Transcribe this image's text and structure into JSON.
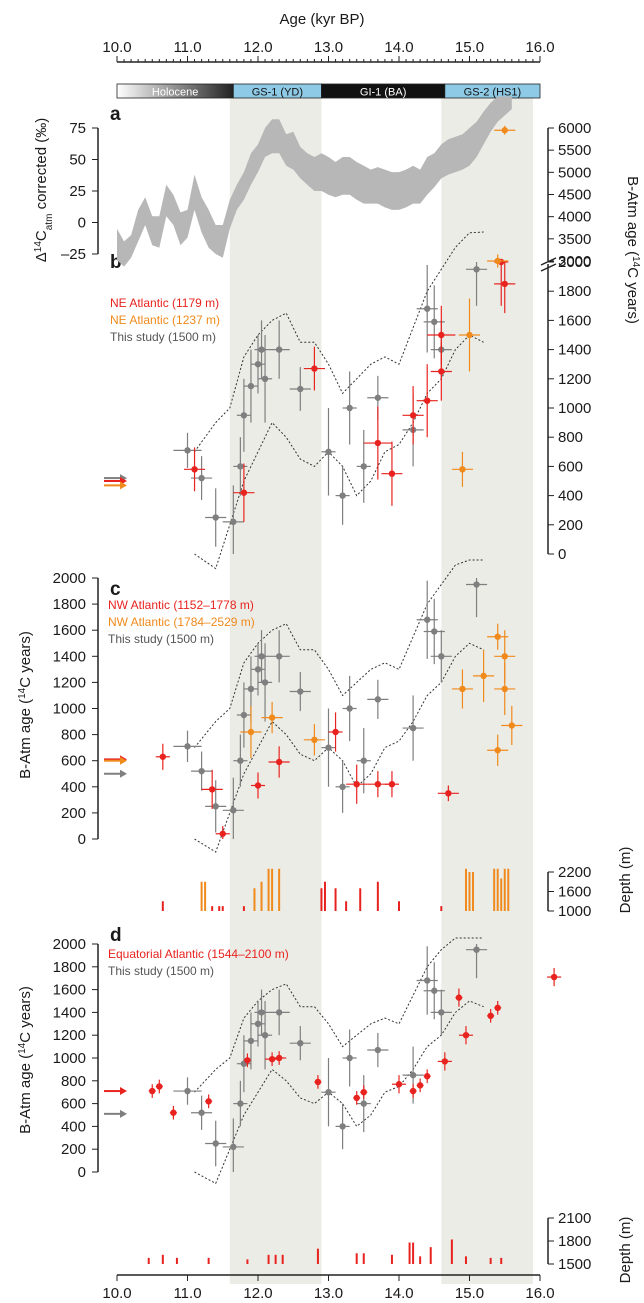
{
  "figure": {
    "top_axis_title": "Age (kyr BP)",
    "bottom_ticks": [
      "10.0",
      "11.0",
      "12.0",
      "13.0",
      "14.0",
      "15.0",
      "16.0"
    ],
    "top_ticks": [
      "10.0",
      "11.0",
      "12.0",
      "13.0",
      "14.0",
      "15.0",
      "16.0"
    ],
    "periods": [
      {
        "label": "Holocene",
        "start": 10.0,
        "end": 11.65,
        "color": "gradient"
      },
      {
        "label": "GS-1 (YD)",
        "start": 11.65,
        "end": 12.9,
        "color": "#8ecae6"
      },
      {
        "label": "GI-1 (BA)",
        "start": 12.9,
        "end": 14.65,
        "color": "#111111"
      },
      {
        "label": "GS-2 (HS1)",
        "start": 14.65,
        "end": 16.0,
        "color": "#8ecae6"
      }
    ],
    "shaded_intervals": [
      [
        11.6,
        12.9
      ],
      [
        14.6,
        15.9
      ]
    ],
    "colors": {
      "red": "#e8231f",
      "orange": "#f08a1c",
      "grey": "#7f7f7f",
      "envelope": "#b7b7b7",
      "shade": "#ecece6"
    }
  },
  "panels": {
    "a": {
      "letter": "a",
      "ylabel": "Δ14Catm corrected (‰)",
      "ylabel_main": "Δ",
      "ylabel_sup": "14",
      "ylabel_c": "C",
      "ylabel_sub": "atm",
      "ylabel_rest": " corrected (‰)",
      "yticks": [
        "75",
        "50",
        "25",
        "0",
        "–25"
      ]
    },
    "b": {
      "letter": "b",
      "right_ylabel": "B-Atm age (14C years)",
      "right_ticks_low": [
        "2000",
        "1800",
        "1600",
        "1400",
        "1200",
        "1000",
        "800",
        "600",
        "400",
        "200",
        "0"
      ],
      "right_ticks_high": [
        "6000",
        "5500",
        "5000",
        "4500",
        "4000",
        "3500",
        "3000"
      ],
      "legend": [
        "NE Atlantic (1179 m)",
        "NE Atlantic (1237 m)",
        "This study (1500 m)"
      ]
    },
    "c": {
      "letter": "c",
      "ylabel": "B-Atm age (14C years)",
      "yticks": [
        "2000",
        "1800",
        "1600",
        "1400",
        "1200",
        "1000",
        "800",
        "600",
        "400",
        "200",
        "0"
      ],
      "legend": [
        "NW Atlantic (1152–1778 m)",
        "NW Atlantic (1784–2529 m)",
        "This study (1500 m)"
      ],
      "depth_label": "Depth (m)",
      "depth_ticks": [
        "2200",
        "1600",
        "1000"
      ]
    },
    "d": {
      "letter": "d",
      "ylabel": "B-Atm age (14C years)",
      "yticks": [
        "2000",
        "1800",
        "1600",
        "1400",
        "1200",
        "1000",
        "800",
        "600",
        "400",
        "200",
        "0"
      ],
      "legend": [
        "Equatorial Atlantic (1544–2100 m)",
        "This study (1500 m)"
      ],
      "depth_label": "Depth (m)",
      "depth_ticks": [
        "2100",
        "1800",
        "1500"
      ]
    }
  },
  "chart_data": [
    {
      "type": "area",
      "panel": "a",
      "ylim": [
        -30,
        95
      ],
      "xlim": [
        10.0,
        16.0
      ],
      "x": [
        10.0,
        10.1,
        10.2,
        10.3,
        10.4,
        10.5,
        10.6,
        10.7,
        10.8,
        10.9,
        11.0,
        11.1,
        11.2,
        11.3,
        11.4,
        11.5,
        11.6,
        11.7,
        11.8,
        11.9,
        12.0,
        12.1,
        12.2,
        12.3,
        12.4,
        12.5,
        12.6,
        12.7,
        12.8,
        12.9,
        13.0,
        13.1,
        13.2,
        13.3,
        13.4,
        13.5,
        13.6,
        13.7,
        13.8,
        13.9,
        14.0,
        14.1,
        14.2,
        14.3,
        14.4,
        14.5,
        14.6,
        14.7,
        14.8,
        14.9,
        15.0,
        15.1,
        15.2,
        15.3,
        15.4,
        15.5,
        15.6
      ],
      "upper": [
        -5,
        -15,
        -10,
        10,
        20,
        5,
        5,
        30,
        22,
        8,
        10,
        38,
        20,
        10,
        -2,
        -2,
        18,
        30,
        40,
        55,
        62,
        75,
        82,
        82,
        70,
        72,
        60,
        55,
        52,
        55,
        52,
        48,
        52,
        52,
        48,
        45,
        42,
        44,
        42,
        40,
        40,
        42,
        45,
        42,
        52,
        55,
        62,
        66,
        68,
        70,
        75,
        80,
        88,
        95,
        100,
        100,
        100
      ],
      "lower": [
        -30,
        -35,
        -28,
        -15,
        -2,
        -18,
        -20,
        5,
        -2,
        -18,
        -12,
        10,
        -8,
        -20,
        -25,
        -28,
        -5,
        10,
        18,
        30,
        40,
        52,
        55,
        55,
        45,
        42,
        35,
        30,
        25,
        25,
        22,
        20,
        22,
        22,
        18,
        15,
        15,
        15,
        12,
        10,
        10,
        12,
        15,
        15,
        22,
        28,
        35,
        38,
        40,
        42,
        45,
        52,
        62,
        72,
        80,
        85,
        90
      ]
    },
    {
      "type": "scatter",
      "panel": "b",
      "ylim": [
        0,
        2000
      ],
      "series": [
        {
          "name": "NE Atlantic (1179 m)",
          "color": "red",
          "points": [
            [
              11.1,
              580,
              0.3,
              150
            ],
            [
              11.8,
              420,
              0.3,
              200
            ],
            [
              12.8,
              1270,
              0.3,
              150
            ],
            [
              13.7,
              760,
              0.4,
              250
            ],
            [
              13.9,
              550,
              0.3,
              220
            ],
            [
              14.2,
              950,
              0.3,
              200
            ],
            [
              14.4,
              1050,
              0.3,
              250
            ],
            [
              14.6,
              1500,
              0.4,
              200
            ],
            [
              14.6,
              1250,
              0.3,
              200
            ],
            [
              15.5,
              1850,
              0.3,
              200
            ],
            [
              15.45,
              2000,
              0.2,
              300
            ]
          ]
        },
        {
          "name": "NE Atlantic (1237 m)",
          "color": "orange",
          "points": [
            [
              14.9,
              580,
              0.3,
              120
            ],
            [
              15.0,
              1500,
              0.3,
              250
            ],
            [
              15.4,
              3000,
              0.3,
              150
            ],
            [
              15.5,
              5950,
              0.3,
              100
            ]
          ]
        },
        {
          "name": "This study (1500 m)",
          "color": "grey",
          "points": [
            [
              11.0,
              710,
              0.4,
              120
            ],
            [
              11.2,
              520,
              0.3,
              150
            ],
            [
              11.4,
              250,
              0.3,
              200
            ],
            [
              11.65,
              220,
              0.3,
              250
            ],
            [
              11.75,
              600,
              0.2,
              200
            ],
            [
              11.8,
              950,
              0.2,
              250
            ],
            [
              11.9,
              1150,
              0.2,
              250
            ],
            [
              12.0,
              1300,
              0.2,
              200
            ],
            [
              12.05,
              1400,
              0.2,
              200
            ],
            [
              12.1,
              1200,
              0.2,
              300
            ],
            [
              12.3,
              1400,
              0.3,
              200
            ],
            [
              12.6,
              1130,
              0.3,
              150
            ],
            [
              13.0,
              700,
              0.2,
              300
            ],
            [
              13.2,
              400,
              0.2,
              200
            ],
            [
              13.3,
              1000,
              0.2,
              250
            ],
            [
              13.5,
              600,
              0.2,
              250
            ],
            [
              13.7,
              1070,
              0.3,
              150
            ],
            [
              14.2,
              850,
              0.3,
              250
            ],
            [
              14.4,
              1680,
              0.3,
              300
            ],
            [
              14.5,
              1590,
              0.3,
              250
            ],
            [
              14.6,
              1400,
              0.3,
              200
            ],
            [
              15.1,
              1950,
              0.3,
              250
            ]
          ]
        }
      ]
    },
    {
      "type": "scatter",
      "panel": "c",
      "ylim": [
        0,
        2000
      ],
      "series": [
        {
          "name": "NW Atlantic (1152–1778 m)",
          "color": "red",
          "points": [
            [
              10.65,
              630,
              0.2,
              100
            ],
            [
              11.35,
              380,
              0.3,
              150
            ],
            [
              11.5,
              40,
              0.2,
              60
            ],
            [
              12.0,
              410,
              0.2,
              100
            ],
            [
              12.3,
              590,
              0.3,
              120
            ],
            [
              13.1,
              820,
              0.2,
              150
            ],
            [
              13.4,
              420,
              0.3,
              150
            ],
            [
              13.7,
              420,
              0.3,
              100
            ],
            [
              13.9,
              420,
              0.2,
              100
            ],
            [
              14.7,
              350,
              0.3,
              60
            ]
          ]
        },
        {
          "name": "NW Atlantic (1784–2529 m)",
          "color": "orange",
          "points": [
            [
              11.9,
              820,
              0.3,
              200
            ],
            [
              12.2,
              930,
              0.3,
              120
            ],
            [
              12.8,
              760,
              0.3,
              120
            ],
            [
              14.9,
              1150,
              0.3,
              150
            ],
            [
              15.2,
              1250,
              0.3,
              200
            ],
            [
              15.4,
              1550,
              0.3,
              100
            ],
            [
              15.5,
              1400,
              0.3,
              200
            ],
            [
              15.5,
              1150,
              0.3,
              200
            ],
            [
              15.6,
              870,
              0.3,
              150
            ],
            [
              15.4,
              680,
              0.3,
              120
            ]
          ]
        },
        {
          "name": "This study (1500 m)",
          "color": "grey",
          "points": [
            [
              11.0,
              710,
              0.4,
              120
            ],
            [
              11.2,
              520,
              0.3,
              150
            ],
            [
              11.4,
              250,
              0.3,
              200
            ],
            [
              11.65,
              220,
              0.3,
              250
            ],
            [
              11.75,
              600,
              0.2,
              200
            ],
            [
              11.8,
              950,
              0.2,
              250
            ],
            [
              11.9,
              1150,
              0.2,
              250
            ],
            [
              12.0,
              1300,
              0.2,
              200
            ],
            [
              12.05,
              1400,
              0.2,
              200
            ],
            [
              12.1,
              1200,
              0.2,
              300
            ],
            [
              12.3,
              1400,
              0.3,
              200
            ],
            [
              12.6,
              1130,
              0.3,
              150
            ],
            [
              13.0,
              700,
              0.2,
              300
            ],
            [
              13.2,
              400,
              0.2,
              200
            ],
            [
              13.3,
              1000,
              0.2,
              250
            ],
            [
              13.5,
              600,
              0.2,
              250
            ],
            [
              13.7,
              1070,
              0.3,
              150
            ],
            [
              14.2,
              850,
              0.3,
              250
            ],
            [
              14.4,
              1680,
              0.3,
              300
            ],
            [
              14.5,
              1590,
              0.3,
              250
            ],
            [
              14.6,
              1400,
              0.3,
              200
            ],
            [
              15.1,
              1950,
              0.3,
              250
            ]
          ]
        }
      ]
    },
    {
      "type": "scatter",
      "panel": "d",
      "ylim": [
        0,
        2000
      ],
      "series": [
        {
          "name": "Equatorial Atlantic (1544–2100 m)",
          "color": "red",
          "points": [
            [
              10.5,
              710,
              0.1,
              60
            ],
            [
              10.6,
              750,
              0.1,
              60
            ],
            [
              10.8,
              520,
              0.1,
              60
            ],
            [
              11.3,
              620,
              0.1,
              60
            ],
            [
              11.85,
              980,
              0.1,
              60
            ],
            [
              12.2,
              990,
              0.2,
              60
            ],
            [
              12.3,
              1000,
              0.2,
              60
            ],
            [
              12.85,
              790,
              0.1,
              60
            ],
            [
              13.4,
              650,
              0.1,
              60
            ],
            [
              13.5,
              700,
              0.1,
              60
            ],
            [
              14.0,
              770,
              0.2,
              80
            ],
            [
              14.2,
              710,
              0.1,
              60
            ],
            [
              14.3,
              760,
              0.1,
              60
            ],
            [
              14.4,
              840,
              0.1,
              60
            ],
            [
              14.65,
              970,
              0.2,
              80
            ],
            [
              14.85,
              1530,
              0.1,
              80
            ],
            [
              14.95,
              1200,
              0.2,
              80
            ],
            [
              15.3,
              1370,
              0.1,
              60
            ],
            [
              15.4,
              1440,
              0.1,
              60
            ],
            [
              16.2,
              1710,
              0.2,
              80
            ]
          ]
        },
        {
          "name": "This study (1500 m)",
          "color": "grey",
          "points": [
            [
              11.0,
              710,
              0.4,
              120
            ],
            [
              11.2,
              520,
              0.3,
              150
            ],
            [
              11.4,
              250,
              0.3,
              200
            ],
            [
              11.65,
              220,
              0.3,
              250
            ],
            [
              11.75,
              600,
              0.2,
              200
            ],
            [
              11.8,
              950,
              0.2,
              250
            ],
            [
              11.9,
              1150,
              0.2,
              250
            ],
            [
              12.0,
              1300,
              0.2,
              200
            ],
            [
              12.05,
              1400,
              0.2,
              200
            ],
            [
              12.1,
              1200,
              0.2,
              300
            ],
            [
              12.3,
              1400,
              0.3,
              200
            ],
            [
              12.6,
              1130,
              0.3,
              150
            ],
            [
              13.0,
              700,
              0.2,
              300
            ],
            [
              13.2,
              400,
              0.2,
              200
            ],
            [
              13.3,
              1000,
              0.2,
              250
            ],
            [
              13.5,
              600,
              0.2,
              250
            ],
            [
              13.7,
              1070,
              0.3,
              150
            ],
            [
              14.2,
              850,
              0.3,
              250
            ],
            [
              14.4,
              1680,
              0.3,
              300
            ],
            [
              14.5,
              1590,
              0.3,
              250
            ],
            [
              14.6,
              1400,
              0.3,
              200
            ],
            [
              15.1,
              1950,
              0.3,
              250
            ]
          ]
        }
      ]
    }
  ]
}
